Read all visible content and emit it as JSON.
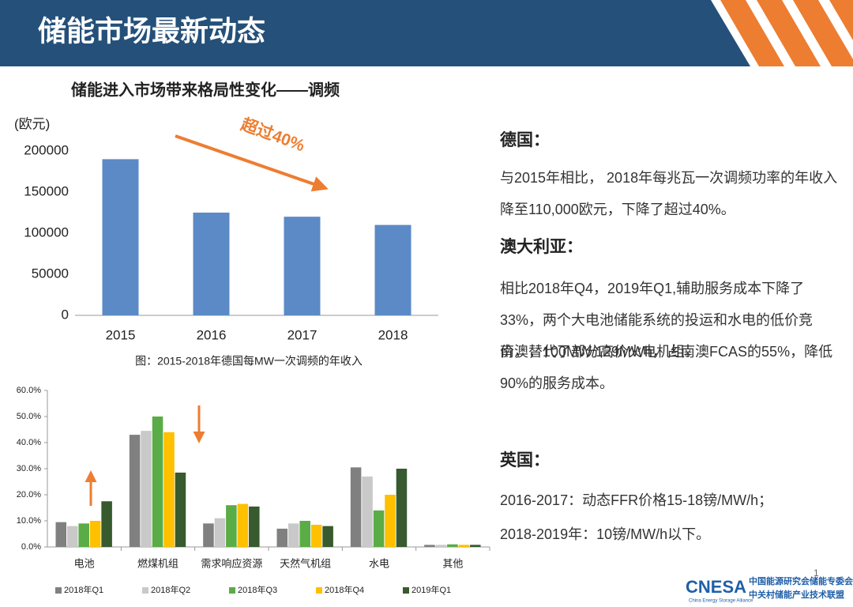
{
  "header": {
    "title": "储能市场最新动态"
  },
  "chart_data": [
    {
      "type": "bar",
      "title": "储能进入市场带来格局性变化——调频",
      "ylabel": "(欧元)",
      "annotation": "超过40%",
      "caption": "图：2015-2018年德国每MW一次调频的年收入",
      "categories": [
        "2015",
        "2016",
        "2017",
        "2018"
      ],
      "values": [
        190000,
        125000,
        120000,
        110000
      ],
      "color": "#5b8ac6",
      "ylim": [
        0,
        200000
      ],
      "yticks": [
        0,
        50000,
        100000,
        150000,
        200000
      ],
      "grid": false
    },
    {
      "type": "bar",
      "categories": [
        "电池",
        "燃煤机组",
        "需求响应资源",
        "天然气机组",
        "水电",
        "其他"
      ],
      "series": [
        {
          "name": "2018年Q1",
          "color": "#808080",
          "values": [
            9.5,
            43,
            9,
            7,
            30.5,
            0.8
          ]
        },
        {
          "name": "2018年Q2",
          "color": "#c9c9c9",
          "values": [
            8,
            44.5,
            11,
            9,
            27,
            0.8
          ]
        },
        {
          "name": "2018年Q3",
          "color": "#5aac46",
          "values": [
            9,
            50,
            16,
            10,
            14,
            1
          ]
        },
        {
          "name": "2018年Q4",
          "color": "#ffc000",
          "values": [
            10,
            44,
            16.5,
            8.5,
            20,
            0.8
          ]
        },
        {
          "name": "2019年Q1",
          "color": "#375a2e",
          "values": [
            17.5,
            28.5,
            15.5,
            8,
            30,
            0.8
          ]
        }
      ],
      "ylim": [
        0,
        60
      ],
      "yticks": [
        {
          "value": 0,
          "label": "0.0%"
        },
        {
          "value": 10,
          "label": "10.0%"
        },
        {
          "value": 20,
          "label": "20.0%"
        },
        {
          "value": 30,
          "label": "30.0%"
        },
        {
          "value": 40,
          "label": "40.0%"
        },
        {
          "value": 50,
          "label": "50.0%"
        },
        {
          "value": 60,
          "label": "60.0%"
        }
      ],
      "grid": false,
      "legend": "bottom"
    }
  ],
  "text_panel": {
    "sections": [
      {
        "heading": "德国：",
        "paragraphs": [
          "与2015年相比， 2018年每兆瓦一次调频功率的年收入降至110,000欧元，下降了超过40%。"
        ]
      },
      {
        "heading": "澳大利亚：",
        "paragraphs": [
          "相比2018年Q4，2019年Q1,辅助服务成本下降了33%，两个大电池储能系统的投运和水电的低价竞价，替代了部分高价火电机组。",
          "南澳，100MW/129MWh，占南澳FCAS的55%，降低90%的服务成本。"
        ]
      },
      {
        "heading": "英国：",
        "paragraphs": [
          "2016-2017：动态FFR价格15-18镑/MW/h；",
          "2018-2019年：10镑/MW/h以下。"
        ]
      }
    ]
  },
  "footer": {
    "page": "1",
    "logo": "CNESA",
    "logo_en": "China Energy Storage Alliance",
    "org1": "中国能源研究会储能专委会",
    "org2": "中关村储能产业技术联盟"
  }
}
